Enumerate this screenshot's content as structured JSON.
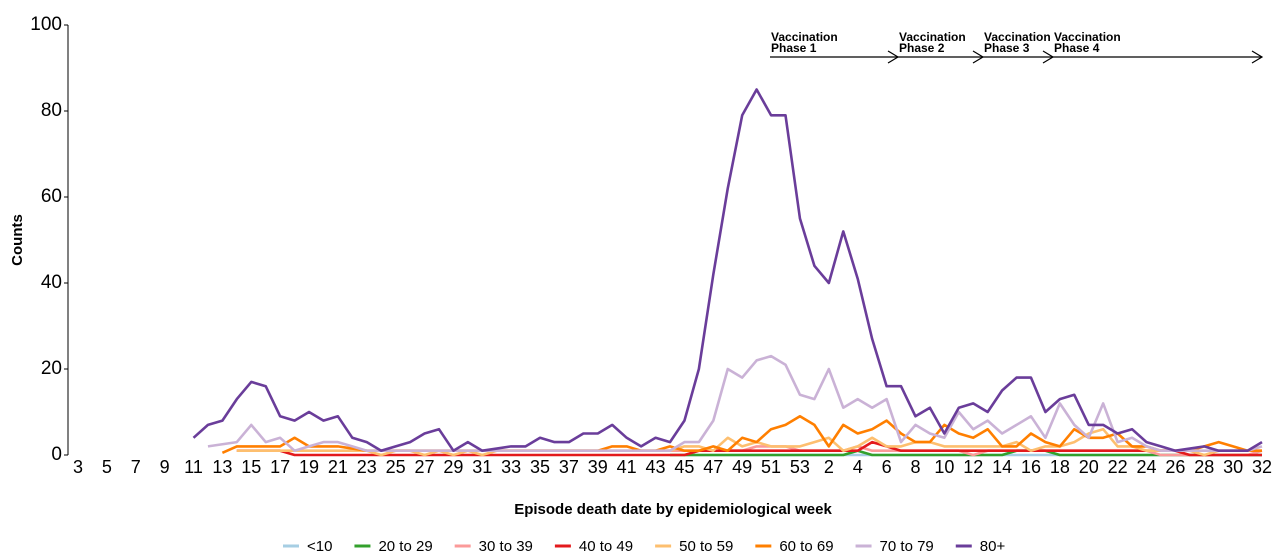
{
  "chart_data": {
    "type": "line",
    "ylabel": "Counts",
    "xlabel": "Episode death date by epidemiological week",
    "ylim": [
      0,
      100
    ],
    "yticks": [
      0,
      20,
      40,
      60,
      80,
      100
    ],
    "categories": [
      "3",
      null,
      "5",
      null,
      "7",
      null,
      "9",
      null,
      "11",
      null,
      "13",
      null,
      "15",
      null,
      "17",
      null,
      "19",
      null,
      "21",
      null,
      "23",
      null,
      "25",
      null,
      "27",
      null,
      "29",
      null,
      "31",
      null,
      "33",
      null,
      "35",
      null,
      "37",
      null,
      "39",
      null,
      "41",
      null,
      "43",
      null,
      "45",
      null,
      "47",
      null,
      "49",
      null,
      "51",
      null,
      "53",
      null,
      "2",
      null,
      "4",
      null,
      "6",
      null,
      "8",
      null,
      "10",
      null,
      "12",
      null,
      "14",
      null,
      "16",
      null,
      "18",
      null,
      "20",
      null,
      "22",
      null,
      "24",
      null,
      "26",
      null,
      "28",
      null,
      "30",
      null,
      "32"
    ],
    "series": [
      {
        "name": "<10",
        "color": "#a6cee3",
        "values": [
          null,
          null,
          null,
          null,
          null,
          null,
          null,
          null,
          null,
          null,
          null,
          null,
          null,
          null,
          null,
          null,
          null,
          null,
          null,
          null,
          null,
          null,
          null,
          null,
          null,
          null,
          null,
          null,
          null,
          null,
          null,
          null,
          null,
          null,
          null,
          null,
          null,
          null,
          null,
          null,
          null,
          null,
          0,
          0,
          0,
          0,
          0,
          0,
          0,
          0,
          0,
          0,
          0,
          0,
          0,
          0,
          0,
          0,
          0,
          0,
          0,
          0,
          0,
          0,
          0,
          0,
          0,
          0,
          0,
          0,
          0,
          0,
          0,
          0,
          0,
          0,
          0,
          0,
          0,
          0,
          0,
          0,
          0
        ]
      },
      {
        "name": "20 to 29",
        "color": "#33a02c",
        "values": [
          null,
          null,
          null,
          null,
          null,
          null,
          null,
          null,
          null,
          null,
          null,
          null,
          null,
          null,
          null,
          null,
          null,
          null,
          null,
          null,
          null,
          null,
          null,
          null,
          null,
          null,
          null,
          null,
          null,
          null,
          null,
          null,
          null,
          null,
          null,
          null,
          null,
          null,
          null,
          null,
          null,
          0,
          0,
          0,
          0,
          0,
          0,
          0,
          0,
          0,
          0,
          0,
          0,
          0,
          1,
          0,
          0,
          0,
          0,
          0,
          0,
          0,
          0,
          0,
          0,
          1,
          1,
          1,
          0,
          0,
          0,
          0,
          0,
          0,
          0,
          0,
          0,
          0,
          0,
          0,
          0,
          0,
          0
        ]
      },
      {
        "name": "30 to 39",
        "color": "#fb9a99",
        "values": [
          null,
          null,
          null,
          null,
          null,
          null,
          null,
          null,
          null,
          null,
          null,
          null,
          null,
          null,
          null,
          null,
          null,
          null,
          null,
          null,
          null,
          null,
          null,
          null,
          null,
          null,
          null,
          null,
          null,
          null,
          null,
          null,
          null,
          null,
          null,
          null,
          null,
          null,
          null,
          null,
          1,
          1,
          1,
          1,
          1,
          1,
          1,
          2,
          2,
          2,
          1,
          1,
          1,
          1,
          2,
          1,
          1,
          1,
          1,
          1,
          1,
          1,
          0,
          1,
          1,
          1,
          1,
          1,
          1,
          1,
          1,
          1,
          1,
          1,
          1,
          0,
          0,
          0,
          0,
          0,
          0,
          0,
          1
        ]
      },
      {
        "name": "40 to 49",
        "color": "#e31a1c",
        "values": [
          null,
          null,
          null,
          null,
          null,
          null,
          null,
          null,
          null,
          null,
          null,
          1,
          1,
          1,
          1,
          0,
          0,
          0,
          0,
          0,
          0,
          0,
          0,
          0,
          0,
          0,
          0,
          0,
          0,
          0,
          0,
          0,
          0,
          0,
          0,
          0,
          0,
          0,
          0,
          0,
          0,
          0,
          0,
          1,
          1,
          1,
          1,
          1,
          1,
          1,
          1,
          1,
          1,
          1,
          1,
          3,
          2,
          1,
          1,
          1,
          1,
          1,
          1,
          1,
          1,
          1,
          1,
          1,
          1,
          1,
          1,
          1,
          1,
          1,
          1,
          1,
          1,
          0,
          0,
          0,
          0,
          0,
          0
        ]
      },
      {
        "name": "50 to 59",
        "color": "#fdbf6f",
        "values": [
          null,
          null,
          null,
          null,
          null,
          null,
          null,
          null,
          null,
          null,
          null,
          1,
          1,
          1,
          1,
          1,
          1,
          1,
          1,
          1,
          1,
          0,
          1,
          1,
          0,
          1,
          0,
          1,
          0,
          1,
          1,
          1,
          1,
          1,
          1,
          1,
          1,
          1,
          1,
          1,
          1,
          1,
          2,
          2,
          1,
          4,
          2,
          3,
          2,
          2,
          2,
          3,
          4,
          1,
          2,
          4,
          2,
          2,
          3,
          3,
          2,
          2,
          2,
          2,
          2,
          3,
          1,
          2,
          2,
          3,
          5,
          6,
          2,
          2,
          1,
          1,
          1,
          1,
          0,
          1,
          1,
          1,
          1
        ]
      },
      {
        "name": "60 to 69",
        "color": "#ff7f00",
        "values": [
          null,
          null,
          null,
          null,
          null,
          null,
          null,
          null,
          null,
          null,
          0.5,
          2,
          2,
          2,
          2,
          4,
          2,
          2,
          2,
          1.5,
          1,
          1,
          1,
          1,
          1,
          1,
          1,
          1,
          1,
          1,
          1,
          1,
          1,
          1,
          1,
          1,
          1,
          2,
          2,
          1,
          1,
          2,
          1,
          1,
          2,
          1,
          4,
          3,
          6,
          7,
          9,
          7,
          2,
          7,
          5,
          6,
          8,
          5,
          3,
          3,
          7,
          5,
          4,
          6,
          2,
          2,
          5,
          3,
          2,
          6,
          4,
          4,
          5,
          2,
          2,
          1,
          1,
          1,
          2,
          3,
          2,
          1,
          1
        ]
      },
      {
        "name": "70 to 79",
        "color": "#cab2d6",
        "values": [
          null,
          null,
          null,
          null,
          null,
          null,
          null,
          null,
          null,
          2,
          2.5,
          3,
          7,
          3,
          4,
          1,
          2,
          3,
          3,
          2,
          1,
          1,
          1,
          1,
          1,
          1,
          1,
          1,
          1,
          1,
          1,
          1,
          1,
          1,
          1,
          1,
          1,
          1,
          1,
          1,
          1,
          1,
          3,
          3,
          8,
          20,
          18,
          22,
          23,
          21,
          14,
          13,
          20,
          11,
          13,
          11,
          13,
          3,
          7,
          5,
          4,
          10,
          6,
          8,
          5,
          7,
          9,
          4,
          12,
          7,
          4,
          12,
          3,
          4,
          2,
          1,
          1,
          1,
          1,
          1,
          1,
          1,
          2
        ]
      },
      {
        "name": "80+",
        "color": "#6a3d9a",
        "values": [
          null,
          null,
          null,
          null,
          null,
          null,
          null,
          null,
          4,
          7,
          8,
          13,
          17,
          16,
          9,
          8,
          10,
          8,
          9,
          4,
          3,
          1,
          2,
          3,
          5,
          6,
          1,
          3,
          1,
          1.5,
          2,
          2,
          4,
          3,
          3,
          5,
          5,
          7,
          4,
          2,
          4,
          3,
          8,
          20,
          42,
          62,
          79,
          85,
          79,
          79,
          55,
          44,
          40,
          52,
          41,
          27,
          16,
          16,
          9,
          11,
          5,
          11,
          12,
          10,
          15,
          18,
          18,
          10,
          13,
          14,
          7,
          7,
          5,
          6,
          3,
          2,
          1,
          1.5,
          2,
          1,
          1,
          1,
          3
        ]
      }
    ],
    "annotations": [
      {
        "lines": [
          "Vaccination",
          "Phase 1"
        ]
      },
      {
        "lines": [
          "Vaccination",
          "Phase 2"
        ]
      },
      {
        "lines": [
          "Vaccination",
          "Phase 3"
        ]
      },
      {
        "lines": [
          "Vaccination",
          "Phase 4"
        ]
      }
    ]
  }
}
